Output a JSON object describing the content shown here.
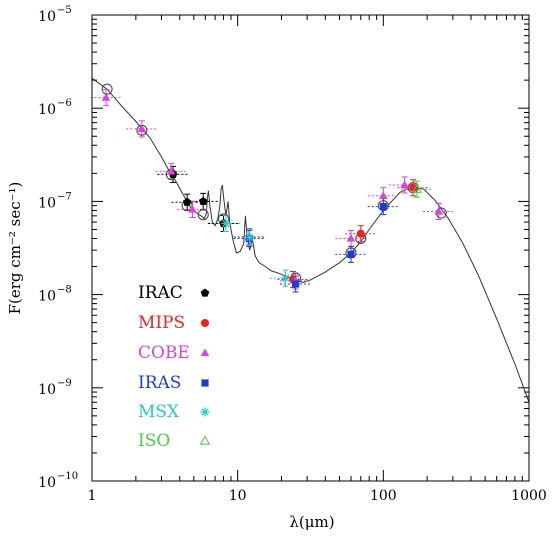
{
  "chart_data": {
    "type": "scatter",
    "title": "",
    "xlabel": "λ(μm)",
    "ylabel": "F(erg cm⁻² sec⁻¹)",
    "xscale": "log",
    "yscale": "log",
    "xlim": [
      1,
      1000
    ],
    "ylim": [
      1e-10,
      1e-05
    ],
    "x_tick_labels": [
      {
        "value": 1,
        "label": "1"
      },
      {
        "value": 10,
        "label": "10"
      },
      {
        "value": 100,
        "label": "100"
      },
      {
        "value": 1000,
        "label": "1000"
      }
    ],
    "y_tick_labels": [
      {
        "value": 1e-10,
        "base": "10",
        "exp": "−10"
      },
      {
        "value": 1e-09,
        "base": "10",
        "exp": "−9"
      },
      {
        "value": 1e-08,
        "base": "10",
        "exp": "−8"
      },
      {
        "value": 1e-07,
        "base": "10",
        "exp": "−7"
      },
      {
        "value": 1e-06,
        "base": "10",
        "exp": "−6"
      },
      {
        "value": 1e-05,
        "base": "10",
        "exp": "−5"
      }
    ],
    "grid": false,
    "legend_position": "lower-left",
    "model_curve": {
      "color": "#333333",
      "points": [
        [
          1,
          2.1e-06
        ],
        [
          1.27,
          1.6e-06
        ],
        [
          1.6,
          1.05e-06
        ],
        [
          2.0,
          7.2e-07
        ],
        [
          2.5,
          4.8e-07
        ],
        [
          3.0,
          3e-07
        ],
        [
          3.4,
          2.1e-07
        ],
        [
          3.8,
          1.6e-07
        ],
        [
          4.2,
          1.2e-07
        ],
        [
          4.5,
          1e-07
        ],
        [
          4.8,
          8.5e-08
        ],
        [
          5.2,
          7.5e-08
        ],
        [
          5.6,
          7e-08
        ],
        [
          5.9,
          6.5e-08
        ],
        [
          6.1,
          7.5e-08
        ],
        [
          6.2,
          1.1e-07
        ],
        [
          6.3,
          1.3e-07
        ],
        [
          6.45,
          9e-08
        ],
        [
          6.7,
          6e-08
        ],
        [
          7.0,
          5.5e-08
        ],
        [
          7.3,
          6.5e-08
        ],
        [
          7.55,
          9e-08
        ],
        [
          7.7,
          1.35e-07
        ],
        [
          7.85,
          1.5e-07
        ],
        [
          8.0,
          1.1e-07
        ],
        [
          8.3,
          7e-08
        ],
        [
          8.6,
          1e-07
        ],
        [
          8.8,
          6e-08
        ],
        [
          9.3,
          3.8e-08
        ],
        [
          9.8,
          2.8e-08
        ],
        [
          10.4,
          2.9e-08
        ],
        [
          11.0,
          3.5e-08
        ],
        [
          11.3,
          7e-08
        ],
        [
          11.6,
          4.2e-08
        ],
        [
          12.1,
          3e-08
        ],
        [
          12.6,
          4e-08
        ],
        [
          13.2,
          2.6e-08
        ],
        [
          14.0,
          2.2e-08
        ],
        [
          15.5,
          2e-08
        ],
        [
          17.0,
          1.8e-08
        ],
        [
          19.0,
          1.7e-08
        ],
        [
          22.0,
          1.55e-08
        ],
        [
          25.0,
          1.45e-08
        ],
        [
          28.0,
          1.35e-08
        ],
        [
          32.0,
          1.45e-08
        ],
        [
          40.0,
          1.75e-08
        ],
        [
          50.0,
          2.2e-08
        ],
        [
          60.0,
          2.8e-08
        ],
        [
          70.0,
          3.7e-08
        ],
        [
          80.0,
          5e-08
        ],
        [
          100.0,
          8e-08
        ],
        [
          130.0,
          1.25e-07
        ],
        [
          160.0,
          1.45e-07
        ],
        [
          190.0,
          1.35e-07
        ],
        [
          230.0,
          1e-07
        ],
        [
          280.0,
          6.5e-08
        ],
        [
          350.0,
          3.6e-08
        ],
        [
          450.0,
          1.6e-08
        ],
        [
          600.0,
          5.5e-09
        ],
        [
          800.0,
          1.8e-09
        ],
        [
          1000.0,
          7e-10
        ]
      ]
    },
    "model_points": {
      "marker": "open-circle",
      "points": [
        [
          1.27,
          1.6e-06
        ],
        [
          2.2,
          5.8e-07
        ],
        [
          3.5,
          1.95e-07
        ],
        [
          4.5,
          9e-08
        ],
        [
          5.8,
          7.2e-08
        ],
        [
          8.0,
          6.5e-08
        ],
        [
          25.0,
          1.5e-08
        ],
        [
          60.0,
          2.8e-08
        ],
        [
          70.0,
          4e-08
        ],
        [
          100.0,
          9e-08
        ],
        [
          160.0,
          1.4e-07
        ],
        [
          250.0,
          7.5e-08
        ]
      ]
    },
    "series": [
      {
        "name": "IRAC",
        "color": "#000000",
        "marker": "pentagon",
        "points": [
          [
            3.6,
            1.95e-07
          ],
          [
            4.5,
            9.8e-08
          ],
          [
            5.8,
            1e-07
          ],
          [
            8.0,
            5.8e-08
          ]
        ]
      },
      {
        "name": "MIPS",
        "color": "#ee2222",
        "marker": "filled-circle",
        "points": [
          [
            24.0,
            1.45e-08
          ],
          [
            70.0,
            4.5e-08
          ],
          [
            160.0,
            1.4e-07
          ]
        ]
      },
      {
        "name": "COBE",
        "color": "#e040e0",
        "marker": "filled-triangle",
        "points": [
          [
            1.25,
            1.3e-06
          ],
          [
            2.2,
            6e-07
          ],
          [
            3.5,
            2.1e-07
          ],
          [
            4.9,
            8.2e-08
          ],
          [
            12.0,
            4.2e-08
          ],
          [
            25.0,
            1.4e-08
          ],
          [
            60.0,
            4e-08
          ],
          [
            100.0,
            1.15e-07
          ],
          [
            140.0,
            1.5e-07
          ],
          [
            240.0,
            7.8e-08
          ]
        ]
      },
      {
        "name": "IRAS",
        "color": "#1a3cd8",
        "marker": "filled-square",
        "points": [
          [
            12.0,
            4e-08
          ],
          [
            25.0,
            1.3e-08
          ],
          [
            60.0,
            2.7e-08
          ],
          [
            100.0,
            8.8e-08
          ]
        ]
      },
      {
        "name": "MSX",
        "color": "#22cccc",
        "marker": "asterisk",
        "points": [
          [
            8.3,
            5.8e-08
          ],
          [
            12.1,
            4.1e-08
          ],
          [
            21.3,
            1.5e-08
          ]
        ]
      },
      {
        "name": "ISO",
        "color": "#44cc44",
        "marker": "open-triangle",
        "points": [
          [
            170.0,
            1.35e-07
          ]
        ]
      }
    ]
  }
}
